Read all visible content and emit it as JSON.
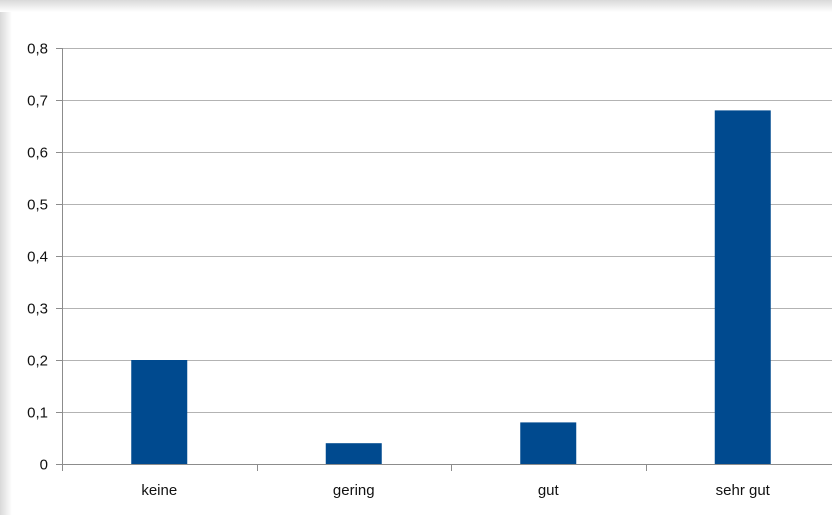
{
  "chart_data": {
    "type": "bar",
    "categories": [
      "keine",
      "gering",
      "gut",
      "sehr gut"
    ],
    "values": [
      0.2,
      0.04,
      0.08,
      0.68
    ],
    "title": "",
    "xlabel": "",
    "ylabel": "",
    "ylim": [
      0,
      0.8
    ],
    "y_ticks": [
      "0",
      "0,1",
      "0,2",
      "0,3",
      "0,4",
      "0,5",
      "0,6",
      "0,7",
      "0,8"
    ],
    "grid": true,
    "legend": "none",
    "bar_color": "#004a8f",
    "grid_color": "#b3b3b3"
  }
}
